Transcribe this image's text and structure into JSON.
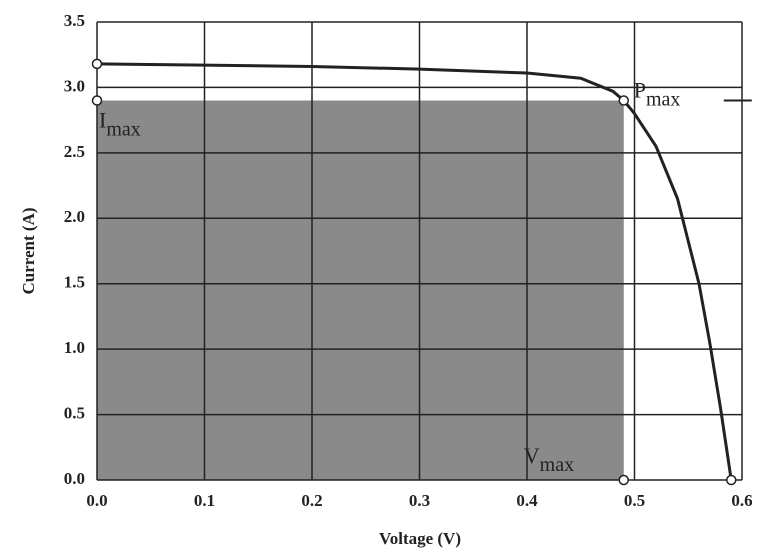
{
  "chart_data": {
    "type": "line",
    "xlabel": "Voltage (V)",
    "ylabel": "Current (A)",
    "xlim": [
      0,
      0.6
    ],
    "ylim": [
      0,
      3.5
    ],
    "xticks": [
      {
        "value": 0,
        "label": "0.0"
      },
      0.1,
      0.2,
      0.3,
      0.4,
      0.5,
      0.6
    ],
    "yticks": [
      {
        "value": 0,
        "label": "0.0"
      },
      0.5,
      {
        "value": 1,
        "label": "1.0"
      },
      1.5,
      {
        "value": 2,
        "label": "2.0"
      },
      2.5,
      {
        "value": 3,
        "label": "3.0"
      },
      3.5
    ],
    "grid": true,
    "series": [
      {
        "color": "#222222",
        "x": [
          0,
          0.1,
          0.2,
          0.3,
          0.4,
          0.45,
          0.48,
          0.49,
          0.5,
          0.52,
          0.54,
          0.56,
          0.57,
          0.58,
          0.59
        ],
        "values": [
          3.18,
          3.17,
          3.16,
          3.14,
          3.11,
          3.07,
          2.97,
          2.9,
          2.8,
          2.55,
          2.15,
          1.5,
          1.05,
          0.55,
          0
        ]
      }
    ],
    "markers": [
      {
        "x": 0,
        "y": 3.18
      },
      {
        "x": 0,
        "y": 2.9
      },
      {
        "x": 0.49,
        "y": 2.9
      },
      {
        "x": 0.49,
        "y": 0
      },
      {
        "x": 0.59,
        "y": 0
      }
    ],
    "annotations": [
      {
        "main": "I",
        "sub": "max"
      },
      {
        "main": "P",
        "sub": "max"
      },
      {
        "main": "V",
        "sub": "max"
      }
    ]
  }
}
